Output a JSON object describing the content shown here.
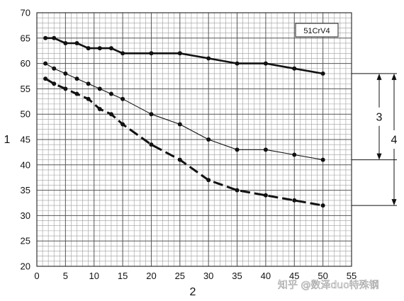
{
  "chart_data": {
    "type": "line",
    "xlabel": "2",
    "ylabel": "1",
    "xlim": [
      0,
      55
    ],
    "ylim": [
      20,
      70
    ],
    "x_ticks": [
      0,
      5,
      10,
      15,
      20,
      25,
      30,
      35,
      40,
      45,
      50,
      55
    ],
    "y_ticks": [
      20,
      25,
      30,
      35,
      40,
      45,
      50,
      55,
      60,
      65,
      70
    ],
    "grid": true,
    "legend": {
      "label": "51CrV4",
      "position": "top-right"
    },
    "series": [
      {
        "style": "thick-solid",
        "x": [
          1.5,
          3,
          5,
          7,
          9,
          11,
          13,
          15,
          20,
          25,
          30,
          35,
          40,
          45,
          50
        ],
        "y": [
          65,
          65,
          64,
          64,
          63,
          63,
          63,
          62,
          62,
          62,
          61,
          60,
          60,
          59,
          58
        ]
      },
      {
        "style": "thin-solid",
        "x": [
          1.5,
          3,
          5,
          7,
          9,
          11,
          13,
          15,
          20,
          25,
          30,
          35,
          40,
          45,
          50
        ],
        "y": [
          60,
          59,
          58,
          57,
          56,
          55,
          54,
          53,
          50,
          48,
          45,
          43,
          43,
          42,
          41
        ]
      },
      {
        "style": "thick-dashed",
        "x": [
          1.5,
          3,
          5,
          7,
          9,
          11,
          13,
          15,
          20,
          25,
          30,
          35,
          40,
          45,
          50
        ],
        "y": [
          57,
          56,
          55,
          54,
          53,
          51,
          50,
          48,
          44,
          41,
          37,
          35,
          34,
          33,
          32
        ]
      }
    ],
    "annotations": [
      {
        "label": "3",
        "from": 58,
        "to": 41
      },
      {
        "label": "4",
        "from": 58,
        "to": 32
      }
    ]
  },
  "watermark": "知乎 @数泽duo特殊钢"
}
